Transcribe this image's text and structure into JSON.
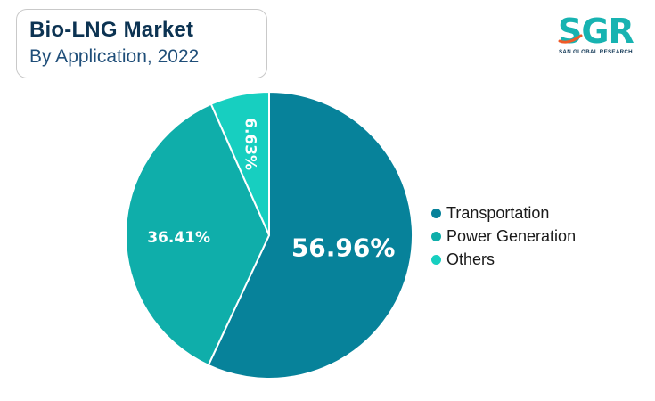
{
  "header": {
    "title": "Bio-LNG Market",
    "subtitle": "By Application, 2022"
  },
  "logo": {
    "mark": "SGR",
    "tagline": "SAN GLOBAL RESEARCH",
    "icon": "sgr-logo-icon",
    "accent_color": "#17b3b1"
  },
  "chart_data": {
    "type": "pie",
    "title": "Bio-LNG Market",
    "subtitle": "By Application, 2022",
    "categories": [
      "Transportation",
      "Power Generation",
      "Others"
    ],
    "values": [
      56.96,
      36.41,
      6.63
    ],
    "labels": [
      "56.96%",
      "36.41%",
      "6.63%"
    ],
    "colors": [
      "#07829a",
      "#0faeaa",
      "#17cfc0"
    ],
    "legend_position": "right"
  }
}
